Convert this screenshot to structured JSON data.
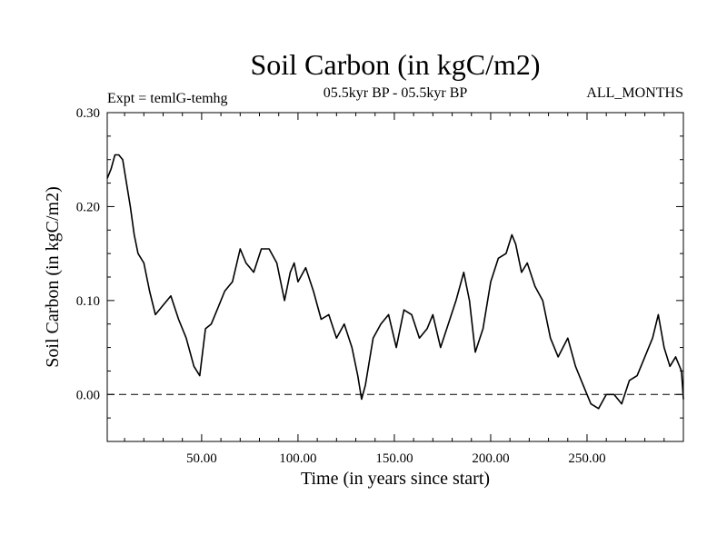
{
  "chart_data": {
    "type": "line",
    "title": "Soil Carbon (in kgC/m2)",
    "subtitle_left": "Expt = temlG-temhg",
    "subtitle_center": "05.5kyr BP - 05.5kyr BP",
    "subtitle_right": "ALL_MONTHS",
    "xlabel": "Time (in years since start)",
    "ylabel": "Soil Carbon (in kgC/m2)",
    "xlim": [
      1,
      300
    ],
    "ylim": [
      -0.05,
      0.3
    ],
    "x_ticks": [
      {
        "value": 50,
        "label": "50.00"
      },
      {
        "value": 100,
        "label": "100.00"
      },
      {
        "value": 150,
        "label": "150.00"
      },
      {
        "value": 200,
        "label": "200.00"
      },
      {
        "value": 250,
        "label": "250.00"
      }
    ],
    "y_ticks": [
      {
        "value": 0.0,
        "label": "0.00"
      },
      {
        "value": 0.1,
        "label": "0.10"
      },
      {
        "value": 0.2,
        "label": "0.20"
      },
      {
        "value": 0.3,
        "label": "0.30"
      }
    ],
    "zero_line": {
      "value": 0.0,
      "style": "dashed"
    },
    "series": [
      {
        "name": "Soil Carbon",
        "x": [
          1,
          3,
          5,
          7,
          9,
          11,
          13,
          15,
          17,
          20,
          23,
          26,
          30,
          34,
          38,
          42,
          46,
          49,
          52,
          55,
          58,
          62,
          66,
          70,
          73,
          77,
          81,
          85,
          89,
          93,
          96,
          98,
          100,
          104,
          108,
          112,
          116,
          120,
          124,
          128,
          131,
          133,
          135,
          139,
          143,
          147,
          151,
          155,
          159,
          163,
          167,
          170,
          174,
          178,
          182,
          186,
          189,
          192,
          196,
          200,
          204,
          208,
          211,
          213,
          216,
          219,
          223,
          227,
          231,
          235,
          240,
          244,
          248,
          252,
          256,
          260,
          264,
          268,
          272,
          276,
          280,
          284,
          287,
          290,
          293,
          296,
          299,
          300
        ],
        "values": [
          0.23,
          0.24,
          0.255,
          0.255,
          0.25,
          0.225,
          0.2,
          0.17,
          0.15,
          0.14,
          0.11,
          0.085,
          0.095,
          0.105,
          0.08,
          0.06,
          0.03,
          0.02,
          0.07,
          0.075,
          0.09,
          0.11,
          0.12,
          0.155,
          0.14,
          0.13,
          0.155,
          0.155,
          0.14,
          0.1,
          0.13,
          0.14,
          0.12,
          0.135,
          0.11,
          0.08,
          0.085,
          0.06,
          0.075,
          0.05,
          0.02,
          -0.005,
          0.01,
          0.06,
          0.075,
          0.085,
          0.05,
          0.09,
          0.085,
          0.06,
          0.07,
          0.085,
          0.05,
          0.075,
          0.1,
          0.13,
          0.1,
          0.045,
          0.07,
          0.12,
          0.145,
          0.15,
          0.17,
          0.16,
          0.13,
          0.14,
          0.115,
          0.1,
          0.06,
          0.04,
          0.06,
          0.03,
          0.01,
          -0.01,
          -0.015,
          0.0,
          0.0,
          -0.01,
          0.015,
          0.02,
          0.04,
          0.06,
          0.085,
          0.05,
          0.03,
          0.04,
          0.025,
          -0.005
        ]
      }
    ]
  }
}
